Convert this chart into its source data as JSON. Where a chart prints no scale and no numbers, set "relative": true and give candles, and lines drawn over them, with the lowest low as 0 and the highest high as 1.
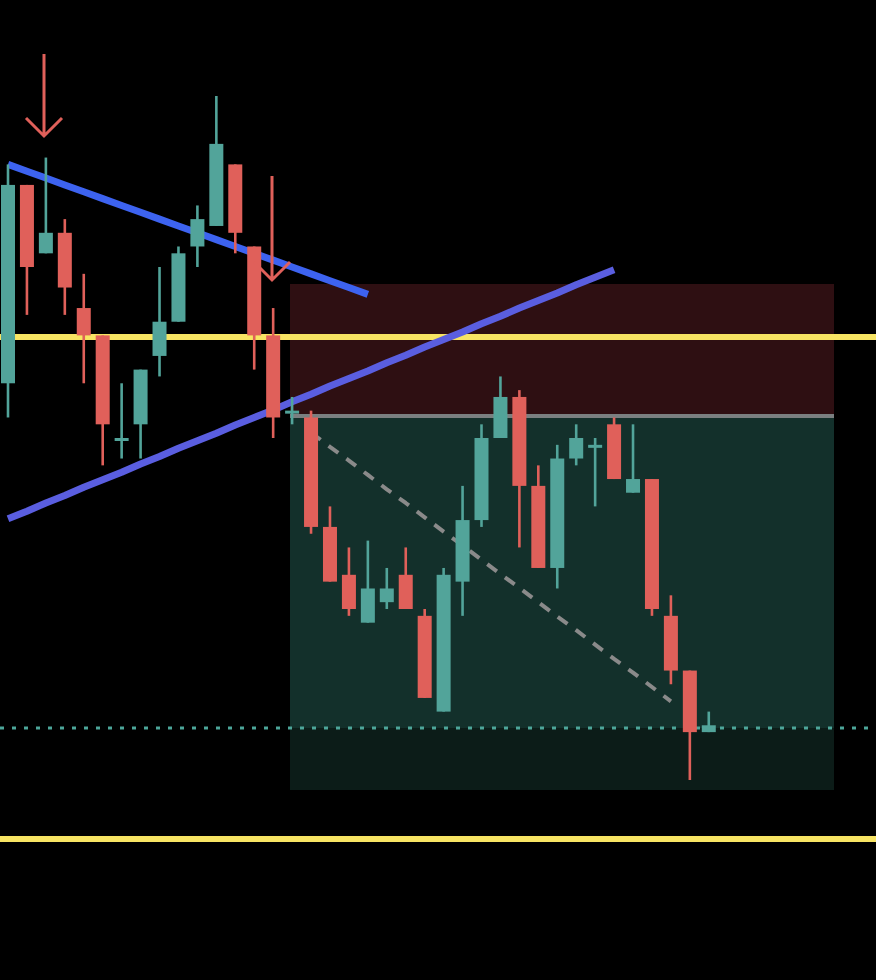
{
  "chart_data": {
    "type": "candlestick",
    "relative": true,
    "categories": [
      null,
      null,
      null,
      null,
      null,
      null,
      null,
      null,
      null,
      null,
      null,
      null,
      null,
      null,
      null,
      null,
      null,
      null,
      null,
      null,
      null,
      null,
      null,
      null,
      null,
      null,
      null,
      null,
      null,
      null,
      null,
      null,
      null,
      null,
      null,
      null,
      null,
      null
    ],
    "ohlc": [
      [
        0.58,
        0.9,
        0.53,
        0.87
      ],
      [
        0.87,
        0.87,
        0.68,
        0.75
      ],
      [
        0.77,
        0.91,
        0.77,
        0.8
      ],
      [
        0.8,
        0.82,
        0.68,
        0.72
      ],
      [
        0.69,
        0.74,
        0.58,
        0.65
      ],
      [
        0.65,
        0.65,
        0.46,
        0.52
      ],
      [
        0.5,
        0.58,
        0.47,
        0.5
      ],
      [
        0.52,
        0.6,
        0.47,
        0.6
      ],
      [
        0.62,
        0.75,
        0.59,
        0.67
      ],
      [
        0.67,
        0.78,
        0.67,
        0.77
      ],
      [
        0.78,
        0.84,
        0.75,
        0.82
      ],
      [
        0.81,
        1.0,
        0.81,
        0.93
      ],
      [
        0.9,
        0.9,
        0.77,
        0.8
      ],
      [
        0.78,
        0.78,
        0.6,
        0.65
      ],
      [
        0.65,
        0.69,
        0.5,
        0.53
      ],
      [
        0.54,
        0.56,
        0.52,
        0.54
      ],
      [
        0.53,
        0.54,
        0.36,
        0.37
      ],
      [
        0.37,
        0.4,
        0.29,
        0.29
      ],
      [
        0.3,
        0.34,
        0.24,
        0.25
      ],
      [
        0.23,
        0.35,
        0.23,
        0.28
      ],
      [
        0.26,
        0.31,
        0.25,
        0.28
      ],
      [
        0.3,
        0.34,
        0.25,
        0.25
      ],
      [
        0.24,
        0.25,
        0.12,
        0.12
      ],
      [
        0.1,
        0.31,
        0.1,
        0.3
      ],
      [
        0.29,
        0.43,
        0.24,
        0.38
      ],
      [
        0.38,
        0.52,
        0.37,
        0.5
      ],
      [
        0.5,
        0.59,
        0.5,
        0.56
      ],
      [
        0.56,
        0.57,
        0.34,
        0.43
      ],
      [
        0.43,
        0.46,
        0.31,
        0.31
      ],
      [
        0.31,
        0.49,
        0.28,
        0.47
      ],
      [
        0.47,
        0.52,
        0.46,
        0.5
      ],
      [
        0.49,
        0.5,
        0.4,
        0.49
      ],
      [
        0.52,
        0.53,
        0.44,
        0.44
      ],
      [
        0.42,
        0.52,
        0.42,
        0.44
      ],
      [
        0.44,
        0.44,
        0.24,
        0.25
      ],
      [
        0.24,
        0.27,
        0.14,
        0.16
      ],
      [
        0.16,
        0.16,
        0.0,
        0.07
      ],
      [
        0.07,
        0.1,
        0.07,
        0.08
      ]
    ],
    "colors": [
      "#52a49a",
      "#e0605a",
      "#52a49a",
      "#e0605a",
      "#e0605a",
      "#e0605a",
      "#52a49a",
      "#52a49a",
      "#52a49a",
      "#52a49a",
      "#52a49a",
      "#52a49a",
      "#e0605a",
      "#e0605a",
      "#e0605a",
      "#52a49a",
      "#e0605a",
      "#e0605a",
      "#e0605a",
      "#52a49a",
      "#52a49a",
      "#e0605a",
      "#e0605a",
      "#52a49a",
      "#52a49a",
      "#52a49a",
      "#52a49a",
      "#e0605a",
      "#e0605a",
      "#52a49a",
      "#52a49a",
      "#52a49a",
      "#e0605a",
      "#52a49a",
      "#e0605a",
      "#e0605a",
      "#e0605a",
      "#52a49a"
    ],
    "series": [
      {
        "type": "line",
        "color": "#3d63f0",
        "values": [
          0.9,
          0.89,
          0.88,
          0.87,
          0.86,
          0.85,
          0.84,
          0.83,
          0.82,
          0.81,
          0.8,
          0.79,
          0.78,
          0.77,
          0.76,
          0.75,
          0.74,
          0.73,
          0.72,
          0.71,
          null,
          null,
          null,
          null,
          null,
          null,
          null,
          null,
          null,
          null,
          null,
          null,
          null,
          null,
          null,
          null,
          null,
          null
        ]
      },
      {
        "type": "line",
        "color": "#5a5ee0",
        "values": [
          0.382,
          0.393,
          0.405,
          0.416,
          0.428,
          0.439,
          0.45,
          0.462,
          0.473,
          0.485,
          0.496,
          0.507,
          0.519,
          0.53,
          0.541,
          0.553,
          0.564,
          0.576,
          0.587,
          0.598,
          0.61,
          0.621,
          0.633,
          0.644,
          0.655,
          0.667,
          0.678,
          0.69,
          0.701,
          0.712,
          0.724,
          0.735,
          0.746,
          null,
          null,
          null,
          null,
          null
        ]
      },
      {
        "type": "line",
        "color": "#8a8a8a",
        "line_style": "dashed",
        "values": [
          null,
          null,
          null,
          null,
          null,
          null,
          null,
          null,
          null,
          null,
          null,
          null,
          null,
          null,
          null,
          null,
          0.508,
          0.487,
          0.467,
          0.446,
          0.425,
          0.405,
          0.384,
          0.363,
          0.343,
          0.322,
          0.301,
          0.281,
          0.26,
          0.239,
          0.219,
          0.198,
          0.177,
          0.157,
          0.136,
          0.115,
          null,
          null
        ]
      }
    ],
    "ref_lines": [
      {
        "axis": "y",
        "value": 0.076,
        "color": "#4da69a",
        "line_style": "dotted"
      }
    ]
  }
}
